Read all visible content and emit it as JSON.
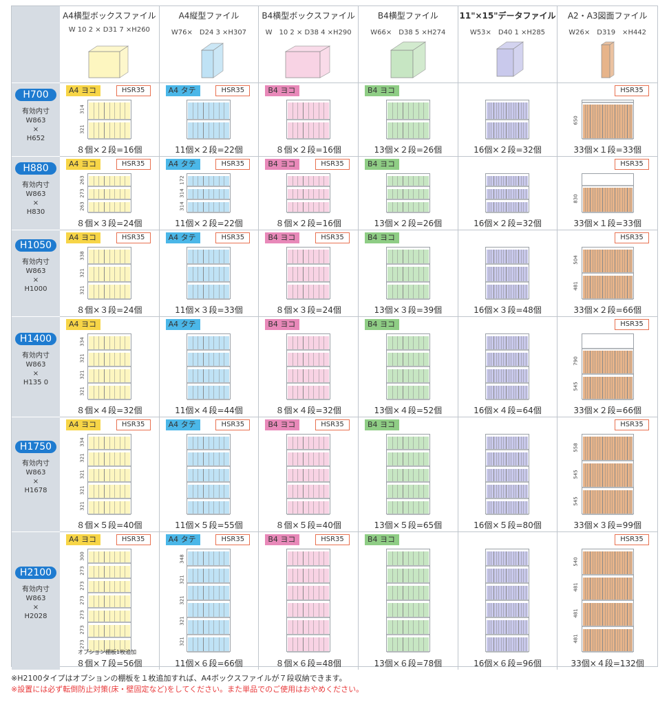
{
  "colors": {
    "yellow": "#fdf6c0",
    "yellow_tag": "#f7d547",
    "blue": "#bfe2f5",
    "blue_tag": "#4bb7e8",
    "pink": "#f8d3e4",
    "pink_tag": "#e889b9",
    "green": "#c7e6c3",
    "green_tag": "#8fcd85",
    "purple": "#c9c9ec",
    "wood": "#e7b48a",
    "pill": "#1e7bd0"
  },
  "file_types": [
    {
      "name": "A4横型ボックスファイル",
      "dims": "W 10 2 × D31 7 ×H260",
      "color": "yellow",
      "bold": false
    },
    {
      "name": "A4縦型ファイル",
      "dims": "W76×　D24 3 ×H307",
      "color": "blue",
      "bold": false
    },
    {
      "name": "B4横型ボックスファイル",
      "dims": "W　10 2 × D38 4 ×H290",
      "color": "pink",
      "bold": false
    },
    {
      "name": "B4横型ファイル",
      "dims": "W66×　D38 5 ×H274",
      "color": "green",
      "bold": false
    },
    {
      "name": "11\"×15\"データファイル",
      "dims": "W53×　D40 1 ×H285",
      "color": "purple",
      "bold": true
    },
    {
      "name": "A2・A3図面ファイル",
      "dims": "W26×　D319　×H442",
      "color": "wood",
      "bold": false
    }
  ],
  "tags": [
    "A4 ヨコ",
    "A4 タテ",
    "B4 ヨコ",
    "B4 ヨコ",
    "",
    ""
  ],
  "hsr": "HSR35",
  "rows": [
    {
      "pill": "H700",
      "sub": [
        "有効内寸",
        "W863",
        "×",
        "H652"
      ],
      "hsr": [
        true,
        true,
        false,
        false,
        false,
        true
      ],
      "tiers": 2,
      "counts": [
        "８個×２段=16個",
        "11個×２段=22個",
        "８個×２段=16個",
        "13個×２段=26個",
        "16個×２段=32個",
        "33個×１段=33個"
      ],
      "dims_a4y": [
        "314",
        "321"
      ],
      "dims_a4t": [],
      "dims_wood": [
        "650"
      ]
    },
    {
      "pill": "H880",
      "sub": [
        "有効内寸",
        "W863",
        "×",
        "H830"
      ],
      "hsr": [
        true,
        true,
        true,
        false,
        false,
        true
      ],
      "tiers": 3,
      "counts": [
        "８個×３段=24個",
        "11個×２段=22個",
        "８個×２段=16個",
        "13個×２段=26個",
        "16個×２段=32個",
        "33個×１段=33個"
      ],
      "dims_a4y": [
        "263",
        "273",
        "263"
      ],
      "dims_a4t": [
        "172",
        "314",
        "314"
      ],
      "dims_wood": [
        "830"
      ]
    },
    {
      "pill": "H1050",
      "sub": [
        "有効内寸",
        "W863",
        "×",
        "H1000"
      ],
      "hsr": [
        true,
        true,
        true,
        false,
        false,
        true
      ],
      "tiers": 3,
      "counts": [
        "８個×３段=24個",
        "11個×３段=33個",
        "８個×３段=24個",
        "13個×３段=39個",
        "16個×３段=48個",
        "33個×２段=66個"
      ],
      "dims_a4y": [
        "338",
        "321",
        "321"
      ],
      "dims_a4t": [],
      "dims_wood": [
        "504",
        "481"
      ]
    },
    {
      "pill": "H1400",
      "sub": [
        "有効内寸",
        "W863",
        "×",
        "H135 0"
      ],
      "hsr": [
        false,
        false,
        false,
        false,
        false,
        true
      ],
      "tiers": 4,
      "counts": [
        "８個×４段=32個",
        "11個×４段=44個",
        "８個×４段=32個",
        "13個×４段=52個",
        "16個×４段=64個",
        "33個×２段=66個"
      ],
      "dims_a4y": [
        "334",
        "321",
        "321",
        "321"
      ],
      "dims_a4t": [],
      "dims_wood": [
        "790",
        "545"
      ]
    },
    {
      "pill": "H1750",
      "sub": [
        "有効内寸",
        "W863",
        "×",
        "H1678"
      ],
      "hsr": [
        true,
        true,
        true,
        false,
        false,
        true
      ],
      "tiers": 5,
      "counts": [
        "８個×５段=40個",
        "11個×５段=55個",
        "８個×５段=40個",
        "13個×５段=65個",
        "16個×５段=80個",
        "33個×３段=99個"
      ],
      "dims_a4y": [
        "334",
        "321",
        "321",
        "321",
        "321"
      ],
      "dims_a4t": [],
      "dims_wood": [
        "558",
        "545",
        "545"
      ]
    },
    {
      "pill": "H2100",
      "sub": [
        "有効内寸",
        "W863",
        "×",
        "H2028"
      ],
      "hsr": [
        true,
        true,
        true,
        false,
        false,
        true
      ],
      "tiers": 6,
      "counts": [
        "８個×７段=56個",
        "11個×６段=66個",
        "８個×６段=48個",
        "13個×６段=78個",
        "16個×６段=96個",
        "33個×４段=132個"
      ],
      "dims_a4y": [
        "300",
        "273",
        "273",
        "273",
        "273",
        "273",
        "273"
      ],
      "dims_a4t": [
        "348",
        "321",
        "321",
        "321",
        "321"
      ],
      "dims_wood": [
        "540",
        "481",
        "481",
        "481"
      ],
      "option_note": "オプション棚板1枚追加"
    }
  ],
  "notes": [
    "※H2100タイプはオプションの棚板を１枚追加すれば、A4ボックスファイルが７段収納できます。",
    "※設置には必ず転倒防止対策(床・壁固定など)をしてください。また単品でのご使用はおやめください。"
  ]
}
